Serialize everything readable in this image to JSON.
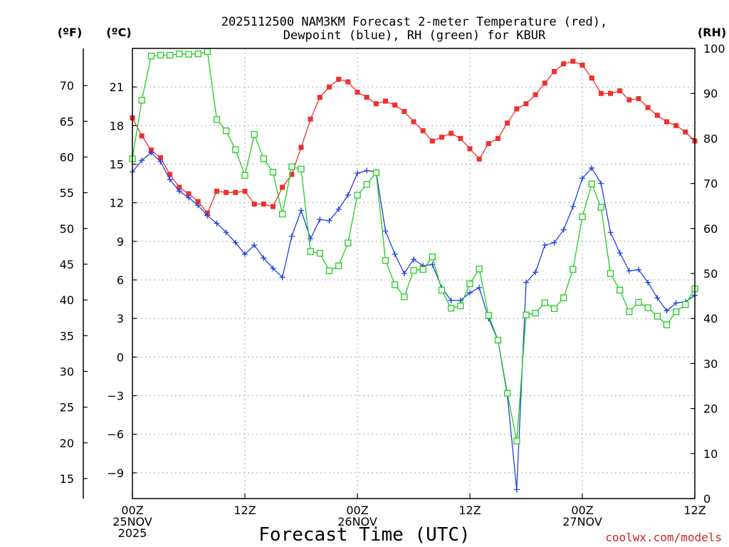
{
  "chart_data": {
    "type": "line",
    "title_line1": "2025112500 NAM3KM Forecast 2-meter Temperature (red),",
    "title_line2": "Dewpoint (blue), RH (green) for KBUR",
    "units": {
      "fahrenheit": "(ºF)",
      "celsius": "(ºC)",
      "rh": "(RH)"
    },
    "xlabel": "Forecast Time (UTC)",
    "x_range_hours": [
      0,
      60
    ],
    "x_ticks": [
      {
        "hour": 0,
        "lines": [
          "00Z",
          "25NOV",
          "2025"
        ]
      },
      {
        "hour": 12,
        "lines": [
          "12Z"
        ]
      },
      {
        "hour": 24,
        "lines": [
          "00Z",
          "26NOV"
        ]
      },
      {
        "hour": 36,
        "lines": [
          "12Z"
        ]
      },
      {
        "hour": 48,
        "lines": [
          "00Z",
          "27NOV"
        ]
      },
      {
        "hour": 60,
        "lines": [
          "12Z"
        ]
      }
    ],
    "celsius_axis": {
      "range": [
        -11,
        24
      ],
      "ticks": [
        -9,
        -6,
        -3,
        0,
        3,
        6,
        9,
        12,
        15,
        18,
        21
      ],
      "tick_labels": [
        "−9",
        "−6",
        "−3",
        "0",
        "3",
        "6",
        "9",
        "12",
        "15",
        "18",
        "21"
      ]
    },
    "fahrenheit_axis": {
      "ticks": [
        15,
        20,
        25,
        30,
        35,
        40,
        45,
        50,
        55,
        60,
        65,
        70
      ]
    },
    "rh_axis": {
      "range": [
        0,
        100
      ],
      "ticks": [
        0,
        10,
        20,
        30,
        40,
        50,
        60,
        70,
        80,
        90,
        100
      ]
    },
    "grid": true,
    "series": [
      {
        "name": "2-meter Temperature",
        "unit": "C",
        "color": "#ee3030",
        "marker": "filled-square",
        "x": [
          0,
          1,
          2,
          3,
          4,
          5,
          6,
          7,
          8,
          9,
          10,
          11,
          12,
          13,
          14,
          15,
          16,
          17,
          18,
          19,
          20,
          21,
          22,
          23,
          24,
          25,
          26,
          27,
          28,
          29,
          30,
          31,
          32,
          33,
          34,
          35,
          36,
          37,
          38,
          39,
          40,
          41,
          42,
          43,
          44,
          45,
          46,
          47,
          48,
          49,
          50,
          51,
          52,
          53,
          54,
          55,
          56,
          57,
          58,
          59,
          60
        ],
        "values": [
          18.6,
          17.2,
          16.1,
          15.5,
          14.2,
          13.2,
          12.7,
          12.1,
          11.2,
          12.9,
          12.8,
          12.8,
          12.9,
          11.9,
          11.9,
          11.7,
          13.2,
          14.2,
          16.3,
          18.5,
          20.2,
          21.0,
          21.6,
          21.4,
          20.6,
          20.2,
          19.7,
          19.9,
          19.6,
          19.1,
          18.3,
          17.6,
          16.8,
          17.1,
          17.4,
          17.0,
          16.2,
          15.4,
          16.6,
          17.0,
          18.2,
          19.3,
          19.7,
          20.4,
          21.3,
          22.2,
          22.8,
          23.0,
          22.7,
          21.7,
          20.5,
          20.5,
          20.7,
          20.0,
          20.1,
          19.4,
          18.8,
          18.3,
          18.0,
          17.5,
          16.8
        ]
      },
      {
        "name": "Dewpoint",
        "unit": "C",
        "color": "#2040e0",
        "marker": "plus",
        "x": [
          0,
          1,
          2,
          3,
          4,
          5,
          6,
          7,
          8,
          9,
          10,
          11,
          12,
          13,
          14,
          15,
          16,
          17,
          18,
          19,
          20,
          21,
          22,
          23,
          24,
          25,
          26,
          27,
          28,
          29,
          30,
          31,
          32,
          33,
          34,
          35,
          36,
          37,
          38,
          39,
          40,
          41,
          42,
          43,
          44,
          45,
          46,
          47,
          48,
          49,
          50,
          51,
          52,
          53,
          54,
          55,
          56,
          57,
          58,
          59,
          60
        ],
        "values": [
          14.4,
          15.3,
          15.9,
          15.2,
          13.8,
          12.9,
          12.4,
          11.8,
          11.0,
          10.4,
          9.7,
          8.9,
          8.0,
          8.7,
          7.7,
          6.9,
          6.2,
          9.4,
          11.4,
          9.2,
          10.7,
          10.6,
          11.5,
          12.6,
          14.3,
          14.5,
          14.4,
          9.8,
          8.0,
          6.5,
          7.6,
          7.1,
          7.2,
          5.4,
          4.4,
          4.4,
          5.0,
          5.4,
          3.0,
          1.3,
          -3.0,
          -10.3,
          5.8,
          6.6,
          8.7,
          8.9,
          9.9,
          11.7,
          13.9,
          14.7,
          13.5,
          9.7,
          8.1,
          6.7,
          6.8,
          5.8,
          4.6,
          3.6,
          4.2,
          4.3,
          4.8
        ]
      },
      {
        "name": "RH",
        "unit": "%",
        "color": "#22cc22",
        "marker": "open-square",
        "x": [
          0,
          1,
          2,
          3,
          4,
          5,
          6,
          7,
          8,
          9,
          10,
          11,
          12,
          13,
          14,
          15,
          16,
          17,
          18,
          19,
          20,
          21,
          22,
          23,
          24,
          25,
          26,
          27,
          28,
          29,
          30,
          31,
          32,
          33,
          34,
          35,
          36,
          37,
          38,
          39,
          40,
          41,
          42,
          43,
          44,
          45,
          46,
          47,
          48,
          49,
          50,
          51,
          52,
          53,
          54,
          55,
          56,
          57,
          58,
          59,
          60
        ],
        "values": [
          75.5,
          88.5,
          98.3,
          98.5,
          98.5,
          98.8,
          98.7,
          98.8,
          99.3,
          84.2,
          81.7,
          77.5,
          71.8,
          80.9,
          75.5,
          72.5,
          63.2,
          73.7,
          73.2,
          54.9,
          54.5,
          50.6,
          51.7,
          56.8,
          67.4,
          69.8,
          72.4,
          52.9,
          47.5,
          44.8,
          50.7,
          50.9,
          53.7,
          46.3,
          42.3,
          42.8,
          47.7,
          51.0,
          40.7,
          35.2,
          23.4,
          12.8,
          40.8,
          41.2,
          43.5,
          42.2,
          44.6,
          50.9,
          62.6,
          69.9,
          64.7,
          50.0,
          46.3,
          41.5,
          43.6,
          42.4,
          40.5,
          38.6,
          41.5,
          43.1,
          46.6
        ]
      }
    ]
  },
  "credit": {
    "text": "coolwx.com/models",
    "color": "#cc2222"
  }
}
